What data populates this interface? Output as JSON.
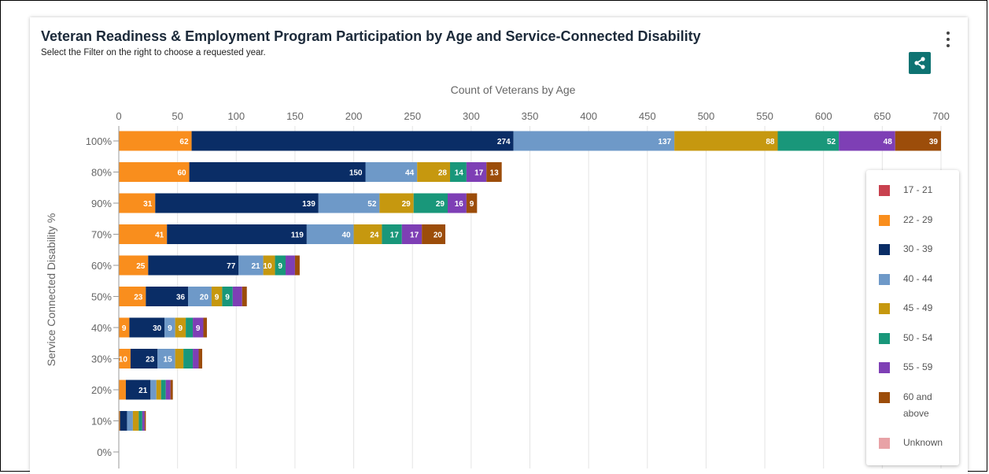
{
  "title": "Veteran Readiness & Employment Program Participation by Age and Service-Connected Disability",
  "subtitle": "Select the Filter on the right to choose a requested year.",
  "menu_icon": "kebab-menu-icon",
  "share_icon": "share-icon",
  "share_button_color": "#0e7372",
  "chart_data": {
    "type": "bar",
    "orientation": "horizontal",
    "stacked": true,
    "title": "",
    "xlabel": "Count of Veterans by Age",
    "ylabel": "Service Connected Disability %",
    "xlim": [
      0,
      700
    ],
    "xticks": [
      0,
      50,
      100,
      150,
      200,
      250,
      300,
      350,
      400,
      450,
      500,
      550,
      600,
      650,
      700
    ],
    "grid": true,
    "legend_position": "right",
    "categories": [
      "100%",
      "80%",
      "90%",
      "70%",
      "60%",
      "50%",
      "40%",
      "30%",
      "20%",
      "10%",
      "0%"
    ],
    "series": [
      {
        "name": "17 - 21",
        "color": "#c8414f",
        "values": [
          0,
          0,
          0,
          0,
          0,
          0,
          0,
          0,
          0,
          0,
          0
        ]
      },
      {
        "name": "22 - 29",
        "color": "#f98e1d",
        "values": [
          62,
          60,
          31,
          41,
          25,
          23,
          9,
          10,
          6,
          1,
          0
        ]
      },
      {
        "name": "30 - 39",
        "color": "#0a2d66",
        "values": [
          274,
          150,
          139,
          119,
          77,
          36,
          30,
          23,
          21,
          6,
          0
        ]
      },
      {
        "name": "40 - 44",
        "color": "#6e99c8",
        "values": [
          137,
          44,
          52,
          40,
          21,
          20,
          9,
          15,
          5,
          5,
          0
        ]
      },
      {
        "name": "45 - 49",
        "color": "#c6980f",
        "values": [
          88,
          28,
          29,
          24,
          10,
          9,
          9,
          7,
          4,
          5,
          0
        ]
      },
      {
        "name": "50 - 54",
        "color": "#19977a",
        "values": [
          52,
          14,
          29,
          17,
          9,
          9,
          6,
          8,
          4,
          3,
          0
        ]
      },
      {
        "name": "55 - 59",
        "color": "#7e3fb5",
        "values": [
          48,
          17,
          16,
          17,
          8,
          8,
          9,
          5,
          4,
          2,
          0
        ]
      },
      {
        "name": "60 and above",
        "color": "#9c4d0a",
        "values": [
          39,
          13,
          9,
          20,
          4,
          4,
          3,
          3,
          2,
          1,
          0
        ]
      },
      {
        "name": "Unknown",
        "color": "#e8a2a6",
        "values": [
          0,
          0,
          0,
          0,
          0,
          0,
          0,
          0,
          0,
          0,
          0
        ]
      }
    ]
  }
}
